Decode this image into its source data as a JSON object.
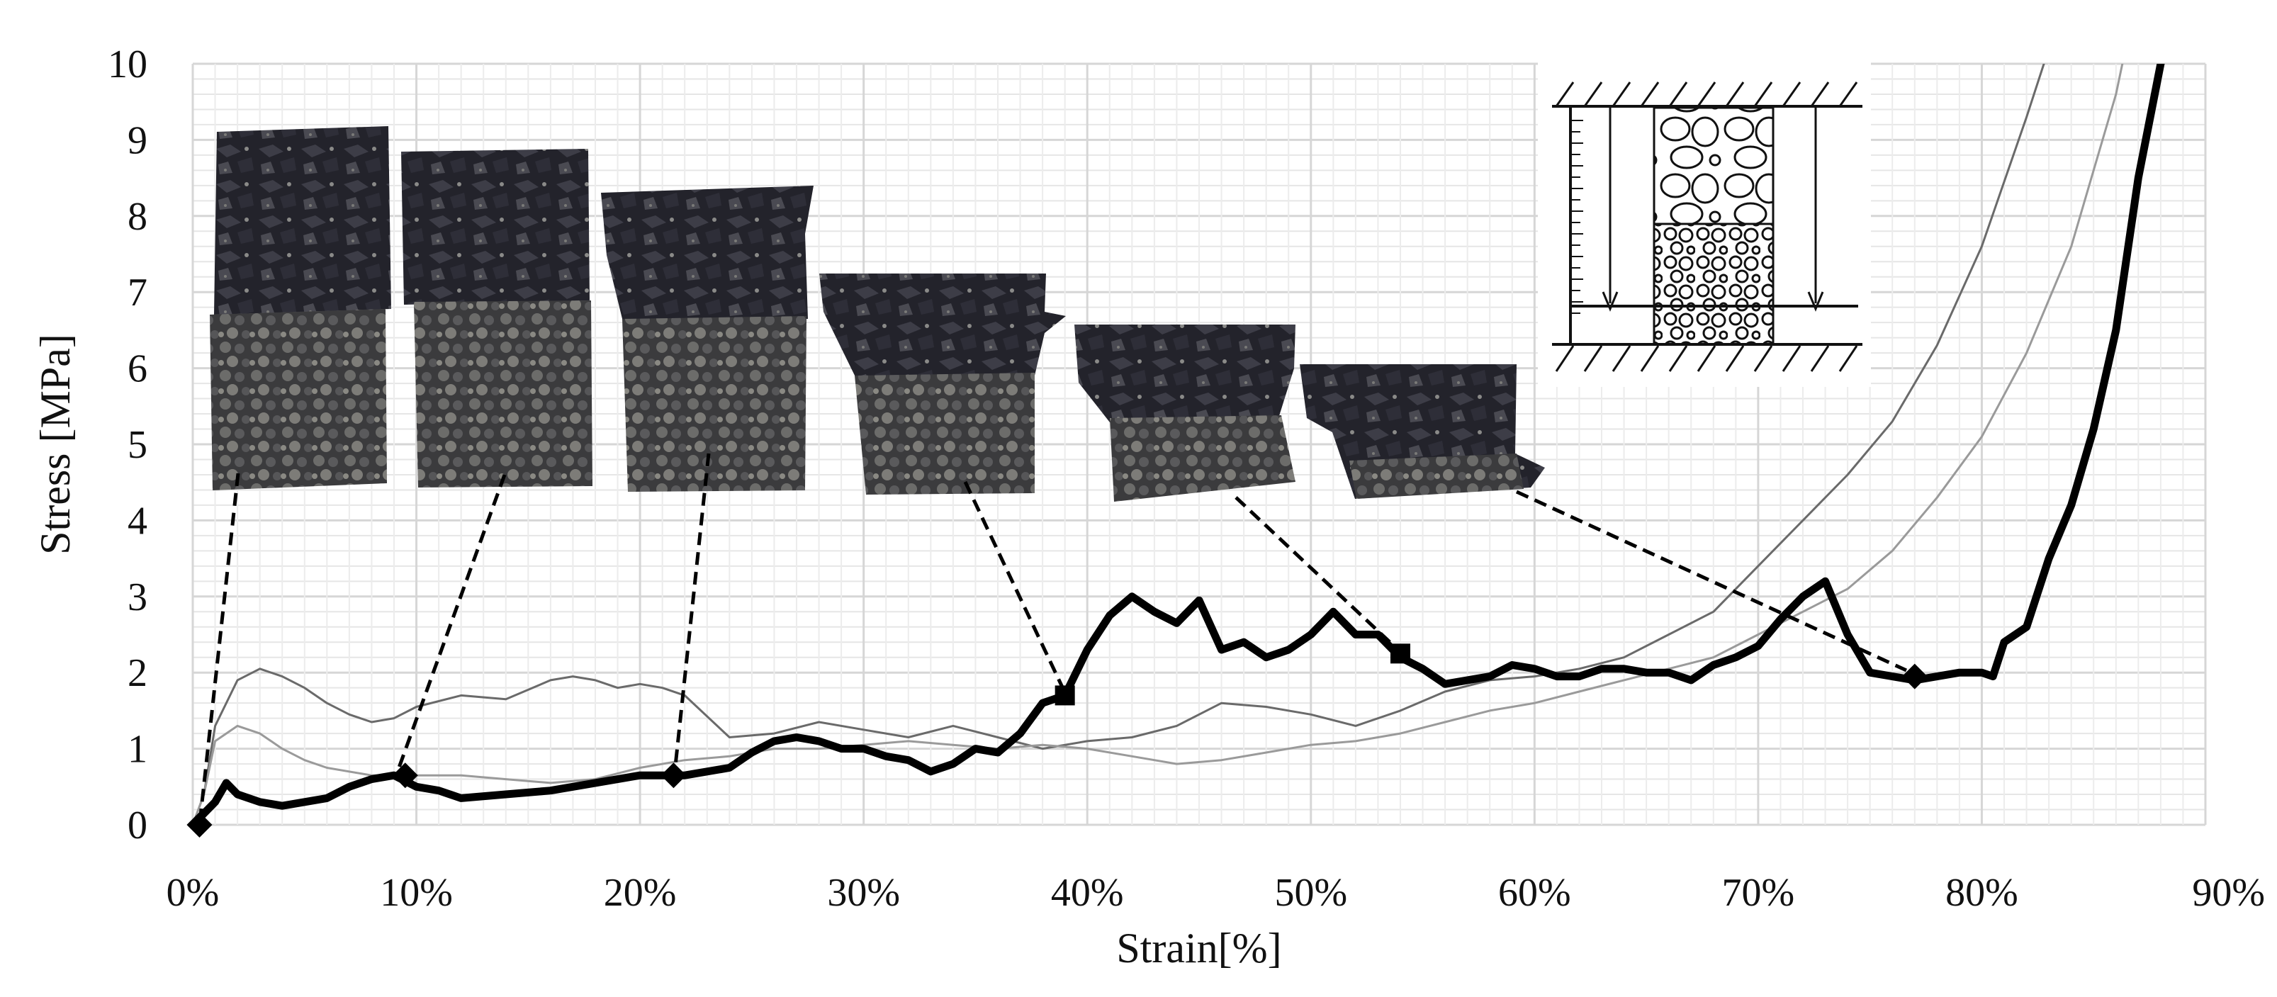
{
  "chart_data": {
    "type": "line",
    "title": "",
    "xlabel": "Strain[%]",
    "ylabel": "Stress [MPa]",
    "xlim": [
      0,
      90
    ],
    "ylim": [
      0,
      10
    ],
    "x_ticks": [
      "0%",
      "10%",
      "20%",
      "30%",
      "40%",
      "50%",
      "60%",
      "70%",
      "80%",
      "90%"
    ],
    "y_ticks": [
      "0",
      "1",
      "2",
      "3",
      "4",
      "5",
      "6",
      "7",
      "8",
      "9",
      "10"
    ],
    "grid": true,
    "legend": "none",
    "series": [
      {
        "style": "thick-black",
        "color": "#000000",
        "x": [
          0,
          1,
          1.5,
          2,
          3,
          4,
          5,
          6,
          7,
          8,
          9,
          10,
          11,
          12,
          14,
          16,
          18,
          20,
          22,
          24,
          25,
          26,
          27,
          28,
          29,
          30,
          31,
          32,
          33,
          34,
          35,
          36,
          37,
          38,
          39,
          40,
          41,
          42,
          43,
          44,
          45,
          46,
          47,
          48,
          49,
          50,
          51,
          52,
          53,
          54,
          55,
          56,
          57,
          58,
          59,
          60,
          61,
          62,
          63,
          64,
          65,
          66,
          67,
          68,
          69,
          70,
          71,
          72,
          73,
          74,
          75,
          76,
          77,
          78,
          79,
          80,
          80.5,
          81,
          82,
          83,
          84,
          85,
          86,
          87,
          88,
          88.5,
          89
        ],
        "y": [
          0,
          0.3,
          0.55,
          0.4,
          0.3,
          0.25,
          0.3,
          0.35,
          0.5,
          0.6,
          0.65,
          0.5,
          0.45,
          0.35,
          0.4,
          0.45,
          0.55,
          0.65,
          0.65,
          0.75,
          0.95,
          1.1,
          1.15,
          1.1,
          1.0,
          1.0,
          0.9,
          0.85,
          0.7,
          0.8,
          1.0,
          0.95,
          1.2,
          1.6,
          1.7,
          2.3,
          2.75,
          3.0,
          2.8,
          2.65,
          2.95,
          2.3,
          2.4,
          2.2,
          2.3,
          2.5,
          2.8,
          2.5,
          2.5,
          2.2,
          2.05,
          1.85,
          1.9,
          1.95,
          2.1,
          2.05,
          1.95,
          1.95,
          2.05,
          2.05,
          2.0,
          2.0,
          1.9,
          2.1,
          2.2,
          2.35,
          2.7,
          3.0,
          3.2,
          2.5,
          2.0,
          1.95,
          1.9,
          1.95,
          2.0,
          2.0,
          1.95,
          2.4,
          2.6,
          3.5,
          4.2,
          5.2,
          6.5,
          8.5,
          10.0,
          10.5,
          11.0
        ]
      },
      {
        "style": "thin-gray",
        "color": "#6a6a6a",
        "x": [
          0,
          0.5,
          1,
          2,
          3,
          4,
          5,
          6,
          7,
          8,
          9,
          10,
          12,
          14,
          16,
          17,
          18,
          19,
          20,
          21,
          22,
          24,
          26,
          28,
          30,
          32,
          34,
          36,
          38,
          40,
          42,
          44,
          46,
          48,
          50,
          52,
          54,
          56,
          58,
          60,
          62,
          64,
          66,
          68,
          70,
          72,
          74,
          76,
          78,
          80,
          82,
          83,
          84
        ],
        "y": [
          0,
          0.4,
          1.3,
          1.9,
          2.05,
          1.95,
          1.8,
          1.6,
          1.45,
          1.35,
          1.4,
          1.55,
          1.7,
          1.65,
          1.9,
          1.95,
          1.9,
          1.8,
          1.85,
          1.8,
          1.7,
          1.15,
          1.2,
          1.35,
          1.25,
          1.15,
          1.3,
          1.15,
          1.0,
          1.1,
          1.15,
          1.3,
          1.6,
          1.55,
          1.45,
          1.3,
          1.5,
          1.75,
          1.9,
          1.95,
          2.05,
          2.2,
          2.5,
          2.8,
          3.4,
          4.0,
          4.6,
          5.3,
          6.3,
          7.6,
          9.3,
          10.2,
          11.0
        ]
      },
      {
        "style": "thin-light",
        "color": "#9a9a9a",
        "x": [
          0,
          0.5,
          1,
          2,
          3,
          4,
          5,
          6,
          8,
          10,
          12,
          14,
          16,
          18,
          20,
          22,
          24,
          26,
          28,
          30,
          32,
          34,
          36,
          38,
          40,
          42,
          44,
          46,
          48,
          50,
          52,
          54,
          56,
          58,
          60,
          62,
          64,
          66,
          68,
          70,
          72,
          74,
          76,
          78,
          80,
          82,
          84,
          85,
          86,
          87
        ],
        "y": [
          0,
          0.4,
          1.1,
          1.3,
          1.2,
          1.0,
          0.85,
          0.75,
          0.65,
          0.65,
          0.65,
          0.6,
          0.55,
          0.6,
          0.75,
          0.85,
          0.9,
          1.0,
          1.0,
          1.05,
          1.1,
          1.05,
          1.0,
          1.05,
          1.0,
          0.9,
          0.8,
          0.85,
          0.95,
          1.05,
          1.1,
          1.2,
          1.35,
          1.5,
          1.6,
          1.75,
          1.9,
          2.05,
          2.2,
          2.5,
          2.8,
          3.1,
          3.6,
          4.3,
          5.1,
          6.2,
          7.6,
          8.6,
          9.6,
          11.0
        ]
      }
    ],
    "markers": [
      {
        "x": 0.3,
        "y": 0.0,
        "shape": "diamond"
      },
      {
        "x": 9.5,
        "y": 0.65,
        "shape": "diamond"
      },
      {
        "x": 21.5,
        "y": 0.65,
        "shape": "diamond"
      },
      {
        "x": 39,
        "y": 1.7,
        "shape": "square"
      },
      {
        "x": 54,
        "y": 2.25,
        "shape": "square"
      },
      {
        "x": 77,
        "y": 1.95,
        "shape": "diamond"
      }
    ]
  },
  "schematic": {
    "icon": "compression-apparatus-icon"
  }
}
